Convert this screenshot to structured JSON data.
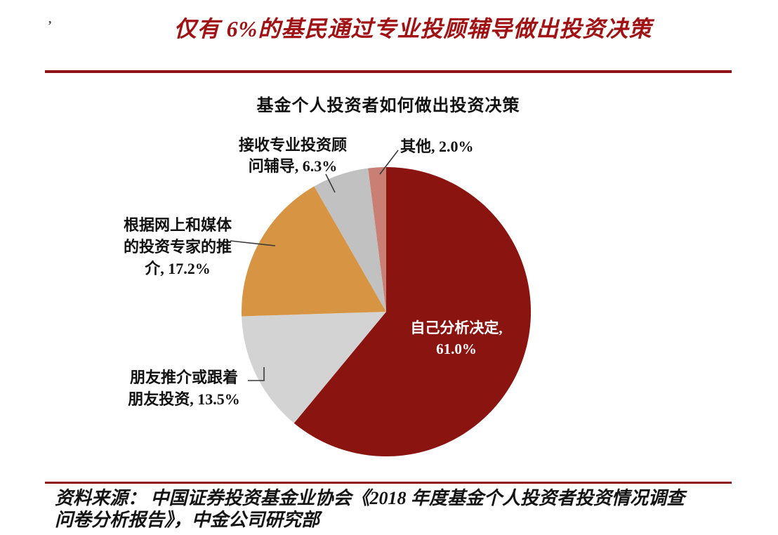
{
  "deco_mark": "’",
  "header": {
    "title": "仅有 6%的基民通过专业投顾辅导做出投资决策"
  },
  "colors": {
    "accent_red": "#8E1316",
    "title_red": "#A01214",
    "inside_label_white": "#ffffff"
  },
  "chart_data": {
    "type": "pie",
    "title": "基金个人投资者如何做出投资决策",
    "start_angle_deg": 0,
    "direction": "clockwise",
    "legend": "none",
    "slices": [
      {
        "label": "自己分析决定",
        "value": 61.0,
        "color": "#8A1410",
        "label_position": "inside"
      },
      {
        "label": "朋友推介或跟着朋友投资",
        "value": 13.5,
        "color": "#D4D3D3",
        "label_position": "outside"
      },
      {
        "label": "根据网上和媒体的投资专家的推介",
        "value": 17.2,
        "color": "#D79543",
        "label_position": "outside"
      },
      {
        "label": "接收专业投资顾问辅导",
        "value": 6.3,
        "color": "#C2C1C1",
        "label_position": "outside"
      },
      {
        "label": "其他",
        "value": 2.0,
        "color": "#C97F74",
        "label_position": "outside"
      }
    ]
  },
  "labels": {
    "inside": {
      "lines": [
        "自己分析决定,",
        "61.0%"
      ]
    },
    "advisor": {
      "lines": [
        "接收专业投资顾",
        "问辅导, 6.3%"
      ]
    },
    "other": {
      "lines": [
        "其他, 2.0%"
      ]
    },
    "media": {
      "lines": [
        "根据网上和媒体",
        "的投资专家的推",
        "介, 17.2%"
      ]
    },
    "friends": {
      "lines": [
        "朋友推介或跟着",
        "朋友投资, 13.5%"
      ]
    }
  },
  "source": {
    "lines": [
      "资料来源： 中国证券投资基金业协会《2018 年度基金个人投资者投资情况调查",
      "问卷分析报告》，中金公司研究部"
    ]
  }
}
